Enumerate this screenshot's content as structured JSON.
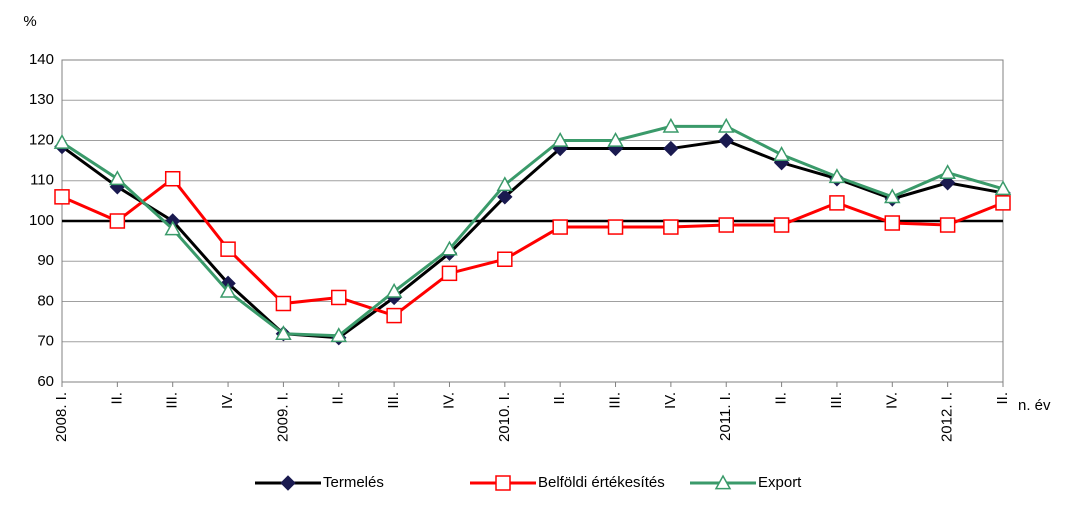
{
  "chart_data": {
    "type": "line",
    "y_label": "%",
    "x_label": "n. év",
    "categories": [
      "2008. I.",
      "II.",
      "III.",
      "IV.",
      "2009. I.",
      "II.",
      "III.",
      "IV.",
      "2010. I.",
      "II.",
      "III.",
      "IV.",
      "2011. I.",
      "II.",
      "III.",
      "IV.",
      "2012. I.",
      "II."
    ],
    "series": [
      {
        "name": "Termelés",
        "color": "#000000",
        "marker": "diamond",
        "marker_color": "#1a1a50",
        "values": [
          118.5,
          108.5,
          100,
          84.5,
          72,
          71,
          81,
          92,
          106,
          118,
          118,
          118,
          120,
          114.5,
          110.5,
          105.5,
          109.5,
          107
        ]
      },
      {
        "name": "Belföldi értékesítés",
        "color": "#ff0000",
        "marker": "square",
        "marker_color": "#ffffff",
        "values": [
          106,
          100,
          110.5,
          93,
          79.5,
          81,
          76.5,
          87,
          90.5,
          98.5,
          98.5,
          98.5,
          99,
          99,
          104.5,
          99.5,
          99,
          104.5
        ]
      },
      {
        "name": "Export",
        "color": "#3a9a6a",
        "marker": "triangle",
        "marker_color": "#ffffff",
        "values": [
          119.5,
          110.5,
          98,
          82.5,
          72,
          71.5,
          82.5,
          93,
          109,
          120,
          120,
          123.5,
          123.5,
          116.5,
          111,
          106,
          112,
          108
        ]
      }
    ],
    "reference_line": 100,
    "ylim": [
      60,
      140
    ],
    "yticks": [
      60,
      70,
      80,
      90,
      100,
      110,
      120,
      130,
      140
    ],
    "grid": true,
    "legend": "bottom"
  }
}
